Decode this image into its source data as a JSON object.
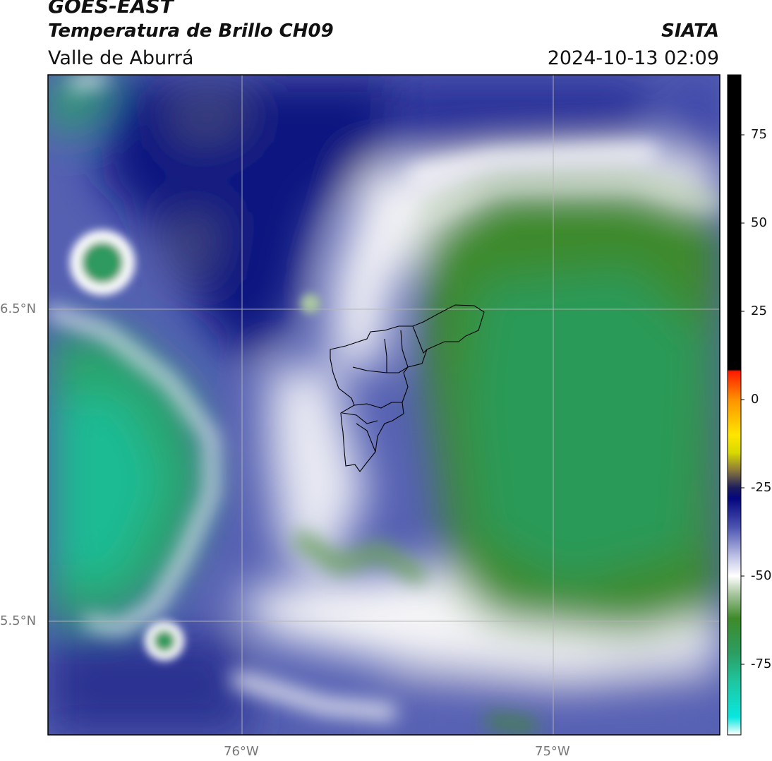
{
  "header": {
    "satellite": "GOES-EAST",
    "product": "Temperatura de Brillo CH09",
    "region": "Valle de Aburrá",
    "agency": "SIATA",
    "datetime": "2024-10-13 02:09"
  },
  "map": {
    "lat_labels": [
      "6.5°N",
      "5.5°N"
    ],
    "lon_labels": [
      "76°W",
      "75°W"
    ],
    "grid_color": "#b5b5b5",
    "boundary": "Valle de Aburrá municipalities outline"
  },
  "colorbar": {
    "ticks": [
      "75",
      "50",
      "25",
      "0",
      "-25",
      "-50",
      "-75"
    ],
    "tick_values": [
      75,
      50,
      25,
      0,
      -25,
      -50,
      -75
    ],
    "range": [
      -95,
      92
    ],
    "stops": [
      {
        "v": 92,
        "c": "#000000"
      },
      {
        "v": 8.5,
        "c": "#000000"
      },
      {
        "v": 8,
        "c": "#ff1a00"
      },
      {
        "v": 0,
        "c": "#ff9200"
      },
      {
        "v": -10,
        "c": "#ffe600"
      },
      {
        "v": -15,
        "c": "#d9d900"
      },
      {
        "v": -20,
        "c": "#8c7a3a"
      },
      {
        "v": -25,
        "c": "#1c1c5e"
      },
      {
        "v": -28,
        "c": "#04067e"
      },
      {
        "v": -36,
        "c": "#4a52b0"
      },
      {
        "v": -45,
        "c": "#c5c8e8"
      },
      {
        "v": -50,
        "c": "#ffffff"
      },
      {
        "v": -55,
        "c": "#a9c6a0"
      },
      {
        "v": -62,
        "c": "#3e8a2a"
      },
      {
        "v": -72,
        "c": "#2b9e63"
      },
      {
        "v": -80,
        "c": "#1ec6a0"
      },
      {
        "v": -90,
        "c": "#09e7e0"
      },
      {
        "v": -95,
        "c": "#ffffff"
      }
    ]
  }
}
